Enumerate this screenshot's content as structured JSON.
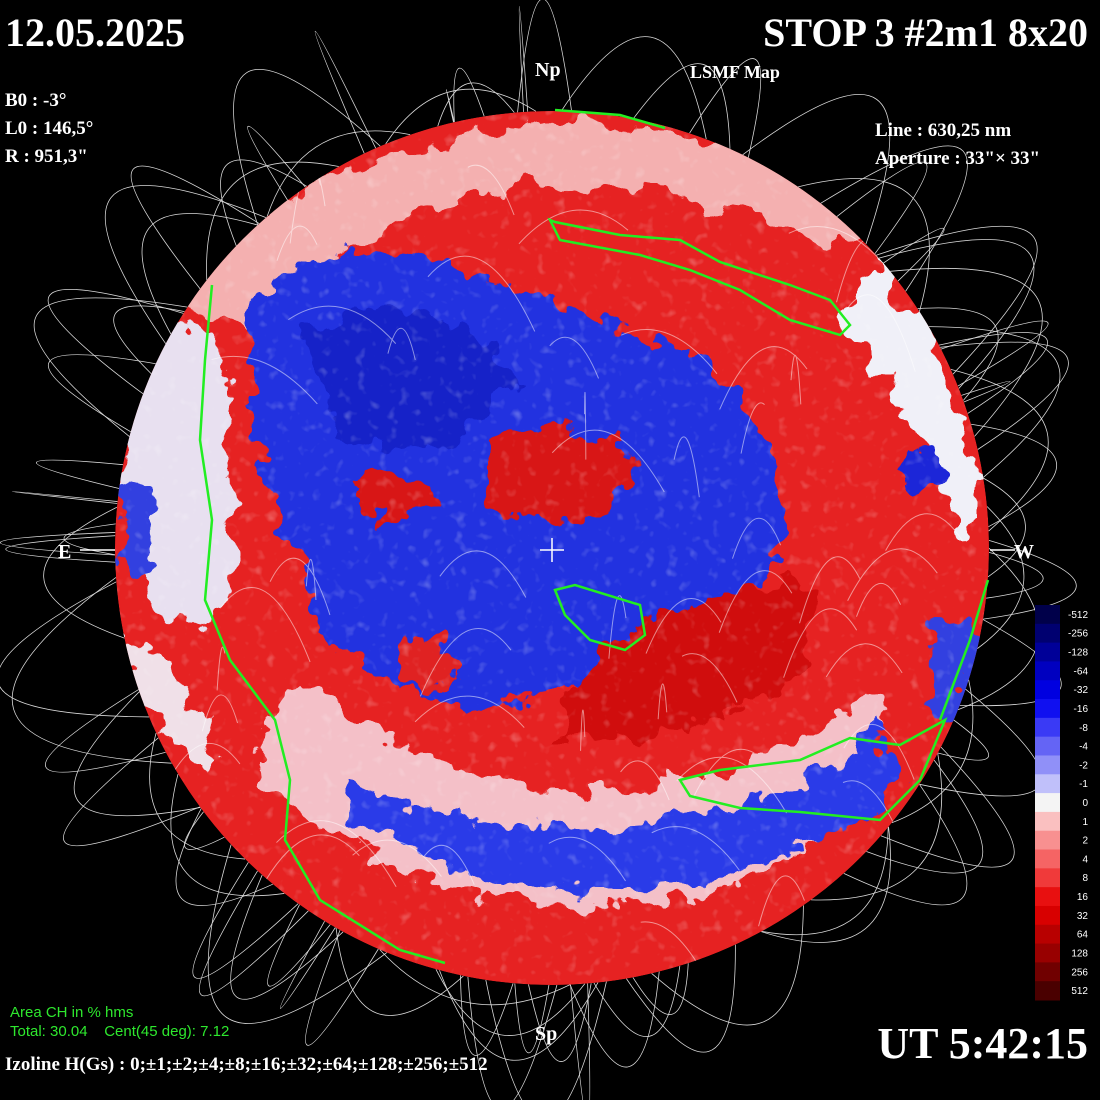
{
  "header": {
    "date": "12.05.2025",
    "title": "STOP 3 #2m1 8x20",
    "subtitle": "LSMF  Map"
  },
  "params": {
    "b0": "B0 : -3°",
    "l0": "L0 : 146,5°",
    "r": "R  : 951,3\"",
    "line": "Line :  630,25 nm",
    "aperture": "Aperture : 33\"× 33\""
  },
  "compass": {
    "north": "Np",
    "south": "Sp",
    "east": "E",
    "west": "W"
  },
  "colorbar": {
    "levels": [
      -512,
      -256,
      -128,
      -64,
      -32,
      -16,
      -8,
      -4,
      -2,
      -1,
      0,
      1,
      2,
      4,
      8,
      16,
      32,
      64,
      128,
      256,
      512
    ],
    "colors": [
      "#00004a",
      "#000070",
      "#000098",
      "#0000c0",
      "#0000e0",
      "#1010f0",
      "#3a3af5",
      "#6464f5",
      "#9090f8",
      "#c0c0fa",
      "#f4f4f4",
      "#fac0c0",
      "#f89090",
      "#f56464",
      "#f03a3a",
      "#e81010",
      "#d80000",
      "#b80000",
      "#980000",
      "#700000",
      "#4a0000"
    ]
  },
  "footer": {
    "area_title": "Area CH in % hms",
    "area_values": "Total: 30.04    Cent(45 deg): 7.12",
    "time": "UT 5:42:15",
    "izoline": "Izoline H(Gs) : 0;±1;±2;±4;±8;±16;±32;±64;±128;±256;±512"
  }
}
